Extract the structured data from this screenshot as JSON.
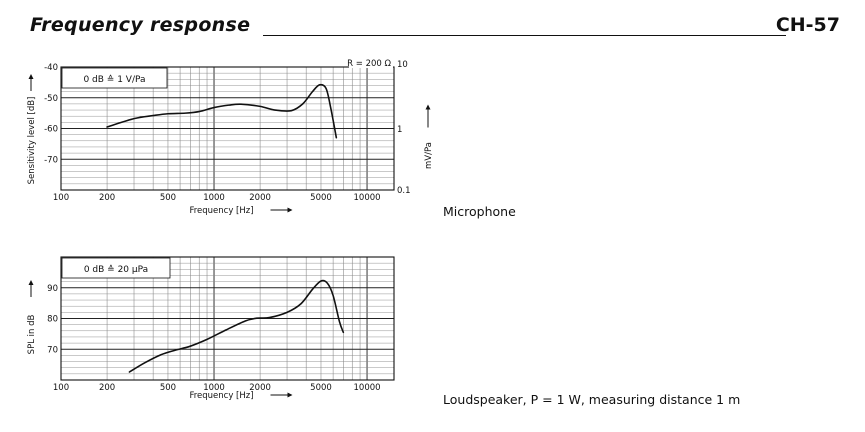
{
  "header": {
    "title": "Frequency response",
    "code": "CH-57"
  },
  "captions": {
    "microphone": "Microphone",
    "loudspeaker": "Loudspeaker, P = 1 W, measuring distance 1 m"
  },
  "chart_data": [
    {
      "type": "line",
      "title": "",
      "xlabel": "Frequency [Hz]",
      "ylabel": "Sensitivity level [dB]",
      "y2label": "mV/Pa",
      "legend_box": "0 dB ≙ 1 V/Pa",
      "annotation": "R = 200 Ω",
      "xscale": "log",
      "xlim": [
        100,
        15000
      ],
      "ylim": [
        -80,
        -40
      ],
      "x_ticks": [
        "100",
        "200",
        "500",
        "1000",
        "2000",
        "5000",
        "10000"
      ],
      "y_ticks": [
        "-40",
        "-50",
        "-60",
        "-70"
      ],
      "y2_ticks": [
        "10",
        "1",
        "0.1"
      ],
      "grid": true,
      "series": [
        {
          "x": [
            200,
            300,
            400,
            500,
            650,
            800,
            1000,
            1250,
            1500,
            2000,
            2500,
            3200,
            3800,
            4400,
            4900,
            5400,
            5800,
            6300
          ],
          "y": [
            -59.5,
            -56.8,
            -55.8,
            -55.2,
            -55.0,
            -54.5,
            -53.2,
            -52.4,
            -52.1,
            -52.8,
            -54.0,
            -54.2,
            -52.0,
            -48.0,
            -45.8,
            -47.0,
            -53.5,
            -63.0
          ]
        }
      ]
    },
    {
      "type": "line",
      "title": "",
      "xlabel": "Frequency [Hz]",
      "ylabel": "SPL in dB",
      "legend_box": "0 dB ≙ 20 µPa",
      "xscale": "log",
      "xlim": [
        100,
        15000
      ],
      "ylim": [
        60,
        100
      ],
      "x_ticks": [
        "100",
        "200",
        "500",
        "1000",
        "2000",
        "5000",
        "10000"
      ],
      "y_ticks": [
        "90",
        "80",
        "70"
      ],
      "grid": true,
      "series": [
        {
          "x": [
            280,
            350,
            450,
            550,
            700,
            900,
            1200,
            1600,
            1900,
            2300,
            3000,
            3700,
            4400,
            5000,
            5500,
            6000,
            6600,
            7000
          ],
          "y": [
            62.6,
            65.5,
            68.2,
            69.6,
            71.0,
            73.2,
            76.3,
            79.2,
            80.1,
            80.3,
            82.0,
            84.8,
            89.5,
            92.2,
            91.5,
            87.5,
            79.0,
            75.5
          ]
        }
      ]
    }
  ]
}
